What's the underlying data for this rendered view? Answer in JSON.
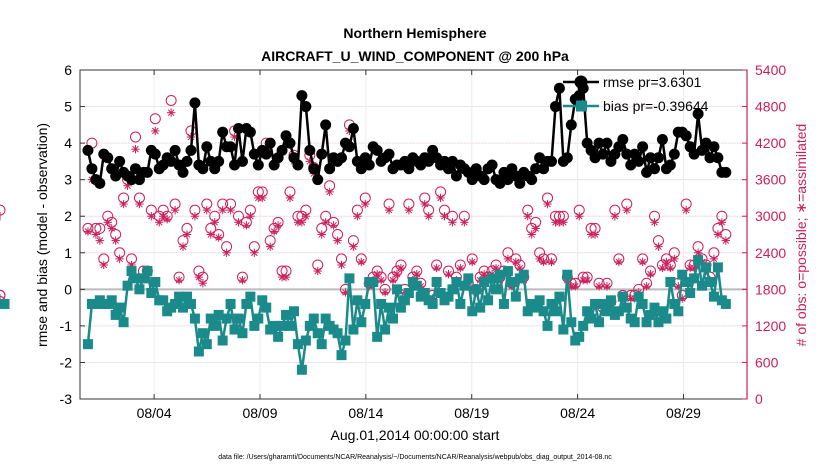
{
  "chart_data": {
    "type": "line",
    "title": "Northern Hemisphere",
    "subtitle": "AIRCRAFT_U_WIND_COMPONENT @ 200 hPa",
    "xlabel": "Aug.01,2014 00:00:00 start",
    "ylabel": "rmse and bias (model - observation)",
    "y2label": "# of obs: o=possible; ∗=assimilated",
    "footnote": "data file: /Users/gharamti/Documents/NCAR/Reanalysis/~/Documents/NCAR/Reanalysis/webpub/obs_diag_output_2014-08.nc",
    "xlim": [
      0.5,
      32.0
    ],
    "ylim": [
      -3,
      6
    ],
    "y2lim": [
      0,
      5400
    ],
    "x_ticks": [
      4,
      9,
      14,
      19,
      24,
      29
    ],
    "x_tick_labels": [
      "08/04",
      "08/09",
      "08/14",
      "08/19",
      "08/24",
      "08/29"
    ],
    "y_ticks": [
      -3,
      -2,
      -1,
      0,
      1,
      2,
      3,
      4,
      5,
      6
    ],
    "y_tick_labels": [
      "-3",
      "-2",
      "-1",
      "0",
      "1",
      "2",
      "3",
      "4",
      "5",
      "6"
    ],
    "y2_ticks": [
      0,
      600,
      1200,
      1800,
      2400,
      3000,
      3600,
      4200,
      4800,
      5400
    ],
    "y2_tick_labels": [
      "0",
      "600",
      "1200",
      "1800",
      "2400",
      "3000",
      "3600",
      "4200",
      "4800",
      "5400"
    ],
    "legend": [
      {
        "name": "rmse pr=3.6301",
        "color": "#000000",
        "marker": "circle"
      },
      {
        "name": "bias pr=-0.39644",
        "color": "#1a8a8a",
        "marker": "square"
      }
    ],
    "legend_position": "top-right",
    "zero_line_color": "#bbbbbb",
    "colors": {
      "rmse": "#000000",
      "bias": "#1a8a8a",
      "obs": "#cc1f5a"
    },
    "series": [
      {
        "name": "rmse",
        "values": [
          3.8,
          3.3,
          3.0,
          2.9,
          3.7,
          3.6,
          3.3,
          3.1,
          3.5,
          3.2,
          3.1,
          3.0,
          3.3,
          3.0,
          3.2,
          3.2,
          3.8,
          3.7,
          3.3,
          3.4,
          3.6,
          3.5,
          3.8,
          3.4,
          3.2,
          3.5,
          3.8,
          5.1,
          3.4,
          3.3,
          3.9,
          3.5,
          3.3,
          3.5,
          4.3,
          3.9,
          3.9,
          3.4,
          4.4,
          3.5,
          4.4,
          4.3,
          3.7,
          3.4,
          3.8,
          3.7,
          4.0,
          3.4,
          3.6,
          3.8,
          4.2,
          4.0,
          3.6,
          3.4,
          5.3,
          5.0,
          3.8,
          3.3,
          3.0,
          3.7,
          4.5,
          3.3,
          3.6,
          3.5,
          3.6,
          4.0,
          3.9,
          4.4,
          3.5,
          3.3,
          3.6,
          3.4,
          3.9,
          3.8,
          3.5,
          3.6,
          3.7,
          3.3,
          3.4,
          3.4,
          3.5,
          3.3,
          3.6,
          3.5,
          3.4,
          3.6,
          3.5,
          3.8,
          3.6,
          3.4,
          3.5,
          3.3,
          3.5,
          3.1,
          3.4,
          3.3,
          3.2,
          3.0,
          3.3,
          3.1,
          3.0,
          3.3,
          3.4,
          3.0,
          2.9,
          3.2,
          3.0,
          3.3,
          3.1,
          2.9,
          3.2,
          3.1,
          3.0,
          3.3,
          3.6,
          3.3,
          3.5,
          3.5,
          5.0,
          5.5,
          3.5,
          3.6,
          4.5,
          5.2,
          5.3,
          5.5,
          4.0,
          3.8,
          3.6,
          4.0,
          3.7,
          4.0,
          3.5,
          3.7,
          3.9,
          4.1,
          3.7,
          3.4,
          3.7,
          3.5,
          3.9,
          3.2,
          3.6,
          3.3,
          3.6,
          4.1,
          3.3,
          3.4,
          3.7,
          4.3,
          4.3,
          4.2,
          3.9,
          3.7,
          4.8,
          3.8,
          4.0,
          3.6,
          3.9,
          3.6,
          3.2,
          3.2
        ]
      },
      {
        "name": "bias",
        "values": [
          -1.5,
          -0.4,
          -0.4,
          -0.3,
          -0.4,
          -0.4,
          -0.3,
          -0.7,
          -0.5,
          -0.9,
          0.1,
          0.5,
          0.3,
          0.0,
          0.3,
          0.5,
          -0.1,
          0.2,
          -0.3,
          -0.3,
          -0.6,
          -0.5,
          -0.4,
          -0.2,
          -0.5,
          -0.2,
          -0.4,
          -0.8,
          -1.7,
          -1.2,
          -1.5,
          -0.8,
          -1.0,
          -0.7,
          -1.4,
          -0.8,
          -0.4,
          -1.1,
          -0.8,
          -1.2,
          -0.4,
          -0.2,
          -1.0,
          -0.8,
          -0.3,
          -0.5,
          -1.1,
          -1.0,
          -1.3,
          -1.0,
          -0.7,
          -1.0,
          -0.6,
          -1.5,
          -2.2,
          -1.4,
          -1.0,
          -0.8,
          -1.2,
          -1.5,
          -0.8,
          -1.0,
          -1.1,
          -1.2,
          -1.8,
          -1.4,
          0.3,
          -1.1,
          -0.3,
          -0.9,
          -0.4,
          0.2,
          0.2,
          -1.3,
          -0.4,
          -1.1,
          -0.5,
          -0.8,
          0.0,
          -0.5,
          -0.3,
          -0.1,
          0.2,
          0.1,
          -0.2,
          -0.1,
          -0.3,
          -0.4,
          0.2,
          -0.1,
          -0.3,
          -0.2,
          0.0,
          0.2,
          -0.4,
          0.1,
          0.3,
          -0.6,
          0.0,
          -0.5,
          0.2,
          -0.3,
          0.3,
          0.0,
          0.4,
          -0.4,
          0.5,
          0.2,
          -0.2,
          0.3,
          0.4,
          -0.6,
          -0.4,
          -0.5,
          -0.3,
          -0.6,
          -1.0,
          -0.4,
          -0.6,
          -0.2,
          -1.1,
          0.4,
          -0.9,
          -1.4,
          -1.3,
          -1.0,
          -0.6,
          -0.8,
          -0.4,
          -0.9,
          -0.4,
          -0.6,
          -0.3,
          -0.7,
          -0.6,
          -0.2,
          -0.5,
          -0.8,
          -0.9,
          -0.2,
          -0.4,
          -0.9,
          -0.7,
          -0.5,
          -0.9,
          -0.6,
          -0.8,
          0.2,
          -0.4,
          -0.6,
          0.4,
          0.2,
          -0.1,
          0.3,
          0.8,
          0.1,
          0.6,
          0.2,
          -0.2,
          0.6,
          -0.3,
          -0.4,
          -0.4
        ]
      },
      {
        "name": "obs_possible",
        "values": [
          2800,
          4200,
          2800,
          2800,
          2300,
          3000,
          2900,
          2700,
          2400,
          3300,
          3600,
          2300,
          4300,
          3300,
          2100,
          2100,
          3100,
          4600,
          3000,
          3100,
          3000,
          4900,
          3200,
          2000,
          2600,
          2800,
          4400,
          3100,
          2100,
          2000,
          3200,
          2800,
          3000,
          2700,
          3200,
          2500,
          3200,
          4400,
          3000,
          2000,
          2900,
          3100,
          2500,
          3400,
          3400,
          4200,
          2600,
          2800,
          2900,
          2100,
          2100,
          3400,
          4000,
          3000,
          3000,
          3100,
          4000,
          3800,
          2200,
          2800,
          3000,
          3500,
          2900,
          2700,
          2300,
          1800,
          4500,
          2600,
          3100,
          2300,
          3300,
          1900,
          2000,
          2100,
          2000,
          1800,
          3200,
          2000,
          2100,
          2200,
          1800,
          3200,
          2000,
          2100,
          1900,
          3300,
          3100,
          1700,
          2200,
          3400,
          3100,
          2100,
          3000,
          2000,
          2200,
          3000,
          1900,
          2300,
          1800,
          2000,
          2100,
          2000,
          2100,
          2200,
          2000,
          2100,
          2400,
          1900,
          2300,
          2200,
          2000,
          3100,
          2800,
          2900,
          2400,
          2300,
          3300,
          2300,
          3000,
          3000,
          3000,
          2000,
          1900,
          1900,
          3100,
          2000,
          2000,
          2800,
          2800,
          1900,
          1500,
          1900,
          1600,
          3100,
          2300,
          1700,
          3200,
          1700,
          1700,
          1800,
          2300,
          1900,
          2100,
          3000,
          2600,
          2200,
          2300,
          2200,
          2400,
          1900,
          1700,
          3200,
          2200,
          2200,
          2500,
          2300,
          2200,
          2000,
          2400,
          2800,
          3000,
          2700,
          1700,
          1700,
          1600,
          3100
        ]
      },
      {
        "name": "obs_assimilated",
        "values": [
          2750,
          3600,
          2700,
          2600,
          2200,
          2900,
          2800,
          2600,
          2300,
          3200,
          3500,
          2200,
          4100,
          3200,
          2000,
          2000,
          3000,
          4400,
          2900,
          3000,
          2950,
          4700,
          3100,
          1950,
          2500,
          2700,
          4300,
          3000,
          2000,
          1900,
          3100,
          2700,
          2900,
          2650,
          3100,
          2400,
          3100,
          4300,
          2900,
          1950,
          2850,
          3000,
          2400,
          3300,
          3300,
          4100,
          2500,
          2750,
          2850,
          2000,
          2000,
          3300,
          3900,
          2900,
          2900,
          3000,
          3900,
          3700,
          2100,
          2700,
          2900,
          3400,
          2850,
          2600,
          2200,
          1750,
          4400,
          2500,
          3000,
          2250,
          3200,
          1850,
          1950,
          2050,
          1950,
          1750,
          3100,
          1950,
          2050,
          2150,
          1750,
          3100,
          1950,
          2050,
          1850,
          3200,
          3000,
          1650,
          2150,
          3300,
          3000,
          2050,
          2900,
          1950,
          2150,
          2900,
          1850,
          2250,
          1750,
          1950,
          2050,
          1950,
          2050,
          2150,
          1950,
          2050,
          2300,
          1850,
          2250,
          2150,
          1950,
          3000,
          2700,
          2800,
          2300,
          2250,
          3200,
          2250,
          2900,
          2900,
          2900,
          1950,
          1850,
          1850,
          3000,
          1950,
          1950,
          2700,
          2700,
          1850,
          1450,
          1850,
          1550,
          3000,
          2250,
          1650,
          3100,
          1650,
          1650,
          1750,
          2250,
          1850,
          2050,
          2900,
          2500,
          2150,
          2250,
          2150,
          2300,
          1850,
          1650,
          3100,
          2150,
          2150,
          2400,
          2250,
          2150,
          1950,
          2300,
          2700,
          2900,
          2600,
          1650,
          1650,
          1550,
          3000
        ]
      }
    ]
  }
}
